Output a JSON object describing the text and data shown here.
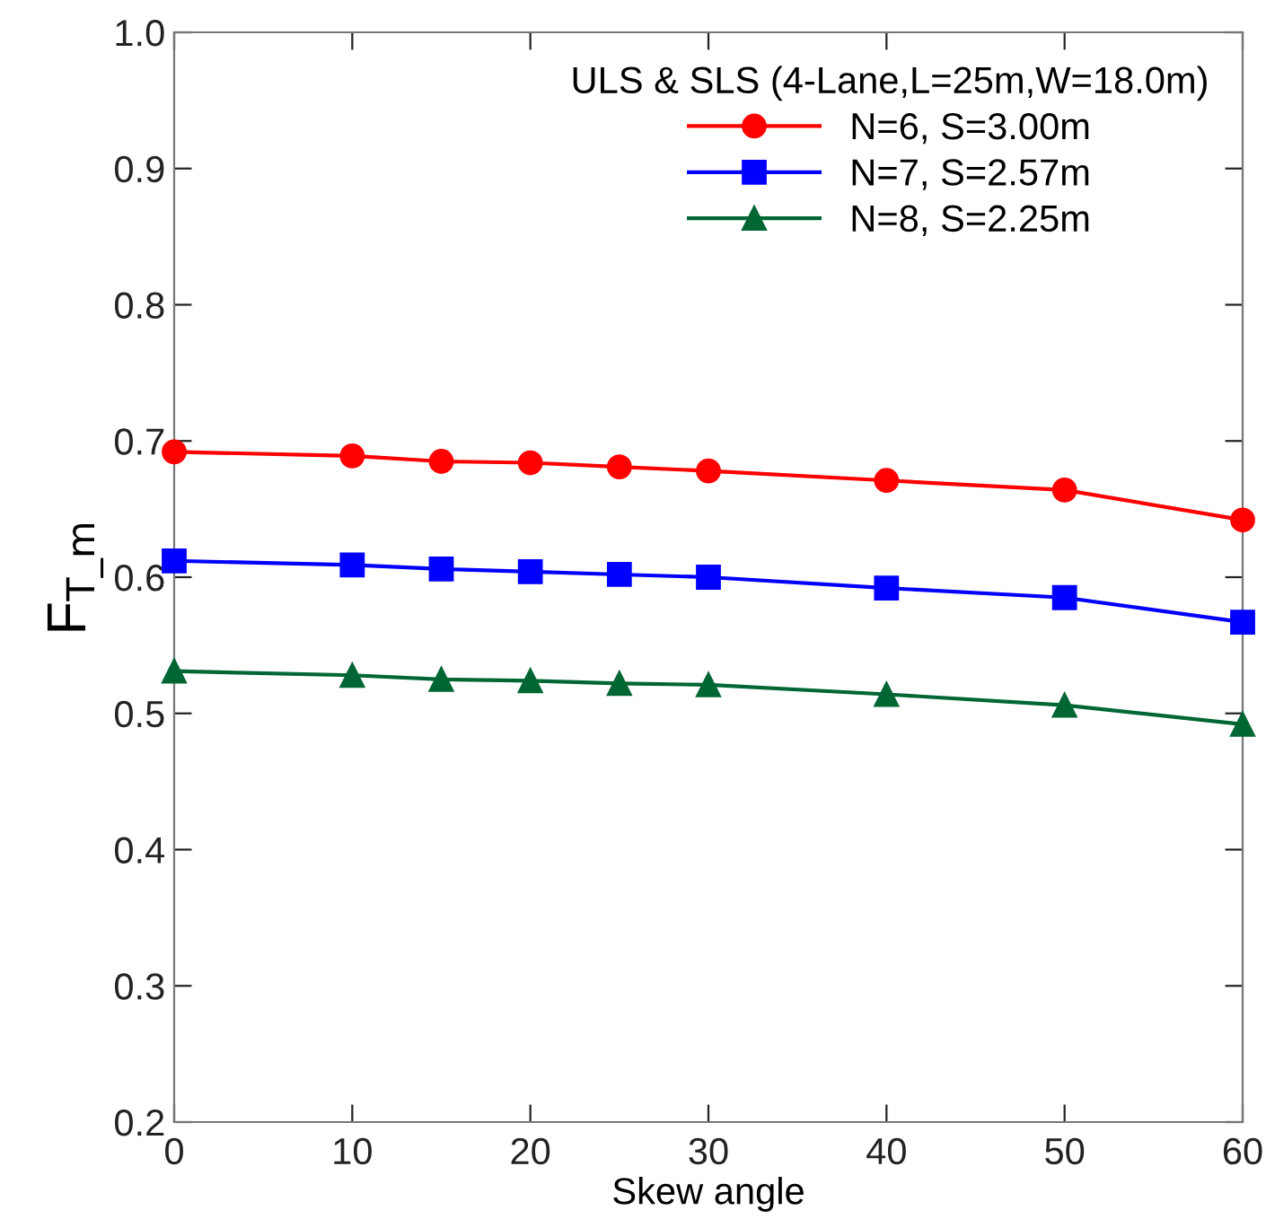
{
  "chart_data": {
    "type": "line",
    "xlabel": "Skew angle",
    "ylabel": "F$_{T_m}$",
    "legend_title": "ULS & SLS (4-Lane,L=25m,W=18.0m)",
    "legend": "top right",
    "grid": false,
    "x": [
      0,
      10,
      15,
      20,
      25,
      30,
      40,
      50,
      60
    ],
    "xlim": [
      0,
      60
    ],
    "xticks": [
      0,
      10,
      20,
      30,
      40,
      50,
      60
    ],
    "ylim": [
      0.2,
      1.0
    ],
    "yticks": [
      0.2,
      0.3,
      0.4,
      0.5,
      0.6,
      0.7,
      0.8,
      0.9,
      {
        "value": 1.0,
        "label": "1.0"
      }
    ],
    "line_style": "solid",
    "series": [
      {
        "name": "N=6, S=3.00m",
        "color": "#ff0000",
        "marker": "circle",
        "values": [
          0.692,
          0.689,
          0.685,
          0.684,
          0.681,
          0.678,
          0.671,
          0.664,
          0.642
        ]
      },
      {
        "name": "N=7, S=2.57m",
        "color": "#0000ff",
        "marker": "square",
        "values": [
          0.612,
          0.609,
          0.606,
          0.604,
          0.602,
          0.6,
          0.592,
          0.585,
          0.567
        ]
      },
      {
        "name": "N=8, S=2.25m",
        "color": "#006633",
        "marker": "triangle",
        "values": [
          0.531,
          0.528,
          0.525,
          0.524,
          0.522,
          0.521,
          0.514,
          0.506,
          0.492
        ]
      }
    ]
  }
}
